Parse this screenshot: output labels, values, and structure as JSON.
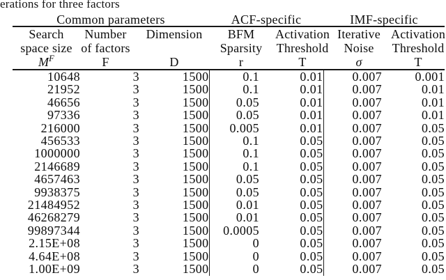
{
  "caption": {
    "text": "erations for three factors"
  },
  "colors": {
    "background": "#ffffff",
    "text": "#0d0d0d",
    "rule": "#161616"
  },
  "table": {
    "group_headers": [
      {
        "label": "Common parameters",
        "span": 3
      },
      {
        "label": "ACF-specific",
        "span": 2
      },
      {
        "label": "IMF-specific",
        "span": 2
      }
    ],
    "columns": [
      {
        "lines": [
          "Search",
          "space size"
        ],
        "symbol": "M",
        "symbol_sup": "F",
        "symbol_italic": true
      },
      {
        "lines": [
          "Number",
          "of factors"
        ],
        "symbol": "F",
        "symbol_italic": false
      },
      {
        "lines": [
          "Dimension",
          ""
        ],
        "symbol": "D",
        "symbol_italic": false
      },
      {
        "lines": [
          "BFM",
          "Sparsity"
        ],
        "symbol": "r",
        "symbol_italic": false
      },
      {
        "lines": [
          "Activation",
          "Threshold"
        ],
        "symbol": "T",
        "symbol_italic": false
      },
      {
        "lines": [
          "Iterative",
          "Noise"
        ],
        "symbol": "σ",
        "symbol_italic": true
      },
      {
        "lines": [
          "Activation",
          "Threshold"
        ],
        "symbol": "T",
        "symbol_italic": false
      }
    ],
    "rows": [
      [
        "10648",
        "3",
        "1500",
        "0.1",
        "0.01",
        "0.007",
        "0.001"
      ],
      [
        "21952",
        "3",
        "1500",
        "0.1",
        "0.01",
        "0.007",
        "0.01"
      ],
      [
        "46656",
        "3",
        "1500",
        "0.05",
        "0.01",
        "0.007",
        "0.01"
      ],
      [
        "97336",
        "3",
        "1500",
        "0.05",
        "0.01",
        "0.007",
        "0.01"
      ],
      [
        "216000",
        "3",
        "1500",
        "0.005",
        "0.01",
        "0.007",
        "0.05"
      ],
      [
        "456533",
        "3",
        "1500",
        "0.1",
        "0.05",
        "0.007",
        "0.05"
      ],
      [
        "1000000",
        "3",
        "1500",
        "0.1",
        "0.05",
        "0.007",
        "0.05"
      ],
      [
        "2146689",
        "3",
        "1500",
        "0.1",
        "0.05",
        "0.007",
        "0.05"
      ],
      [
        "4657463",
        "3",
        "1500",
        "0.05",
        "0.05",
        "0.007",
        "0.05"
      ],
      [
        "9938375",
        "3",
        "1500",
        "0.05",
        "0.05",
        "0.007",
        "0.05"
      ],
      [
        "21484952",
        "3",
        "1500",
        "0.01",
        "0.05",
        "0.007",
        "0.05"
      ],
      [
        "46268279",
        "3",
        "1500",
        "0.01",
        "0.05",
        "0.007",
        "0.05"
      ],
      [
        "99897344",
        "3",
        "1500",
        "0.0005",
        "0.05",
        "0.007",
        "0.05"
      ],
      [
        "2.15E+08",
        "3",
        "1500",
        "0",
        "0.05",
        "0.007",
        "0.05"
      ],
      [
        "4.64E+08",
        "3",
        "1500",
        "0",
        "0.05",
        "0.007",
        "0.05"
      ],
      [
        "1.00E+09",
        "3",
        "1500",
        "0",
        "0.05",
        "0.007",
        "0.05"
      ]
    ]
  }
}
